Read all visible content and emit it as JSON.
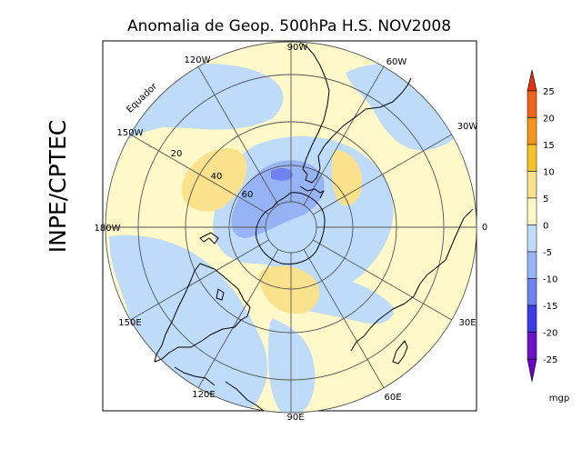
{
  "title": "Anomalia de Geop. 500hPa H.S. NOV2008",
  "side_label": "INPE/CPTEC",
  "longitude_labels": [
    "90W",
    "60W",
    "30W",
    "0",
    "30E",
    "60E",
    "90E",
    "120E",
    "150E",
    "180W",
    "150W",
    "120W"
  ],
  "latitude_labels": [
    "20",
    "40",
    "60"
  ],
  "equator_label": "Equador",
  "colorbar": {
    "ticks": [
      "25",
      "20",
      "15",
      "10",
      "5",
      "0",
      "-5",
      "-10",
      "-15",
      "-20",
      "-25"
    ],
    "unit": "mgp",
    "colors": [
      "#f0641e",
      "#f5961e",
      "#f5c328",
      "#fae18c",
      "#fff8c8",
      "#bedcfa",
      "#96b4f5",
      "#6e82f0",
      "#3c3ce6",
      "#6e14c8"
    ]
  },
  "colors": {
    "background": "#fff8c8",
    "positive_weak": "#fae18c",
    "negative_weak": "#bedcfa",
    "negative_moderate": "#96b4f5"
  }
}
